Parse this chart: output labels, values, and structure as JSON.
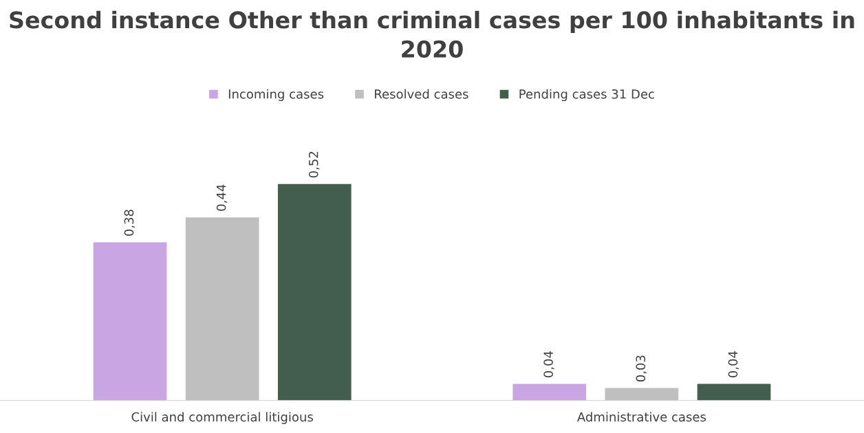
{
  "chart_data": {
    "type": "bar",
    "title": "Second instance Other than criminal cases per 100 inhabitants in 2020",
    "categories": [
      "Civil and commercial litigious",
      "Administrative cases"
    ],
    "series": [
      {
        "name": "Incoming cases",
        "color": "#c9a6e3",
        "values": [
          0.38,
          0.04
        ],
        "value_labels": [
          "0,38",
          "0,04"
        ]
      },
      {
        "name": "Resolved cases",
        "color": "#bfbfbf",
        "values": [
          0.44,
          0.03
        ],
        "value_labels": [
          "0,44",
          "0,03"
        ]
      },
      {
        "name": "Pending cases 31 Dec",
        "color": "#435e4f",
        "values": [
          0.52,
          0.04
        ],
        "value_labels": [
          "0,52",
          "0,04"
        ]
      }
    ],
    "legend": "top"
  }
}
